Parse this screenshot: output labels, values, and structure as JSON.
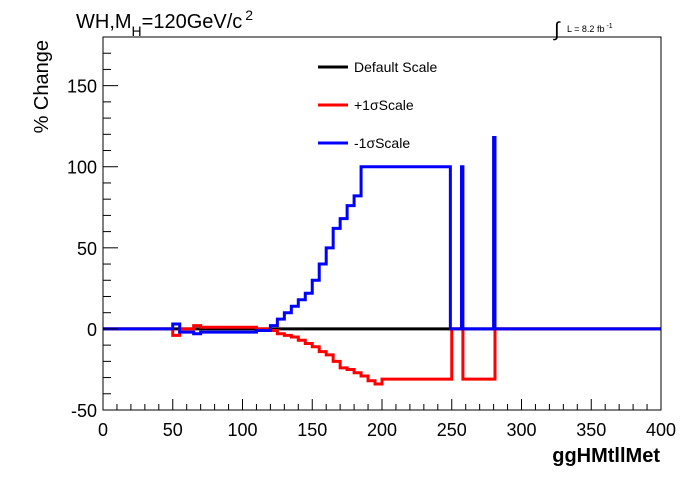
{
  "chart_data": {
    "type": "line",
    "title_parts": {
      "main": "WH,M",
      "subscript": "H",
      "rest": "=120GeV/c",
      "superscript": "2"
    },
    "luminosity": {
      "integral_symbol": "∫",
      "text": "L = 8.2 fb",
      "superscript": "-1"
    },
    "xlabel": "ggHMtllMet",
    "ylabel": "% Change",
    "xlim": [
      0,
      400
    ],
    "ylim": [
      -50,
      180
    ],
    "x_ticks": [
      0,
      50,
      100,
      150,
      200,
      250,
      300,
      350,
      400
    ],
    "y_ticks": [
      -50,
      0,
      50,
      100,
      150
    ],
    "legend_position": "top-center",
    "series": [
      {
        "name": "Default Scale",
        "color": "#000000",
        "x": [
          0,
          400
        ],
        "y": [
          0,
          0
        ]
      },
      {
        "name": "+1σScale",
        "color": "#ff0000",
        "x": [
          0,
          50,
          55,
          65,
          70,
          110,
          120,
          125,
          130,
          135,
          140,
          145,
          150,
          155,
          160,
          165,
          170,
          175,
          180,
          185,
          190,
          195,
          200,
          248,
          250,
          258,
          260,
          280,
          281,
          400
        ],
        "y": [
          0,
          -4,
          0,
          2,
          1,
          0,
          -1,
          -3,
          -4,
          -5,
          -7,
          -9,
          -11,
          -14,
          -16,
          -20,
          -24,
          -25,
          -27,
          -29,
          -32,
          -34,
          -31,
          -31,
          0,
          -31,
          -31,
          -31,
          0,
          0
        ]
      },
      {
        "name": "-1σScale",
        "color": "#0000ff",
        "x": [
          0,
          50,
          55,
          65,
          70,
          110,
          120,
          125,
          130,
          135,
          140,
          145,
          150,
          155,
          160,
          165,
          170,
          175,
          180,
          185,
          248,
          249,
          257,
          258,
          280,
          281,
          400
        ],
        "y": [
          0,
          3,
          -2,
          -3,
          -2,
          -1,
          2,
          6,
          10,
          14,
          18,
          22,
          30,
          40,
          50,
          62,
          68,
          76,
          82,
          100,
          100,
          0,
          100,
          0,
          118,
          0,
          0
        ]
      }
    ]
  }
}
